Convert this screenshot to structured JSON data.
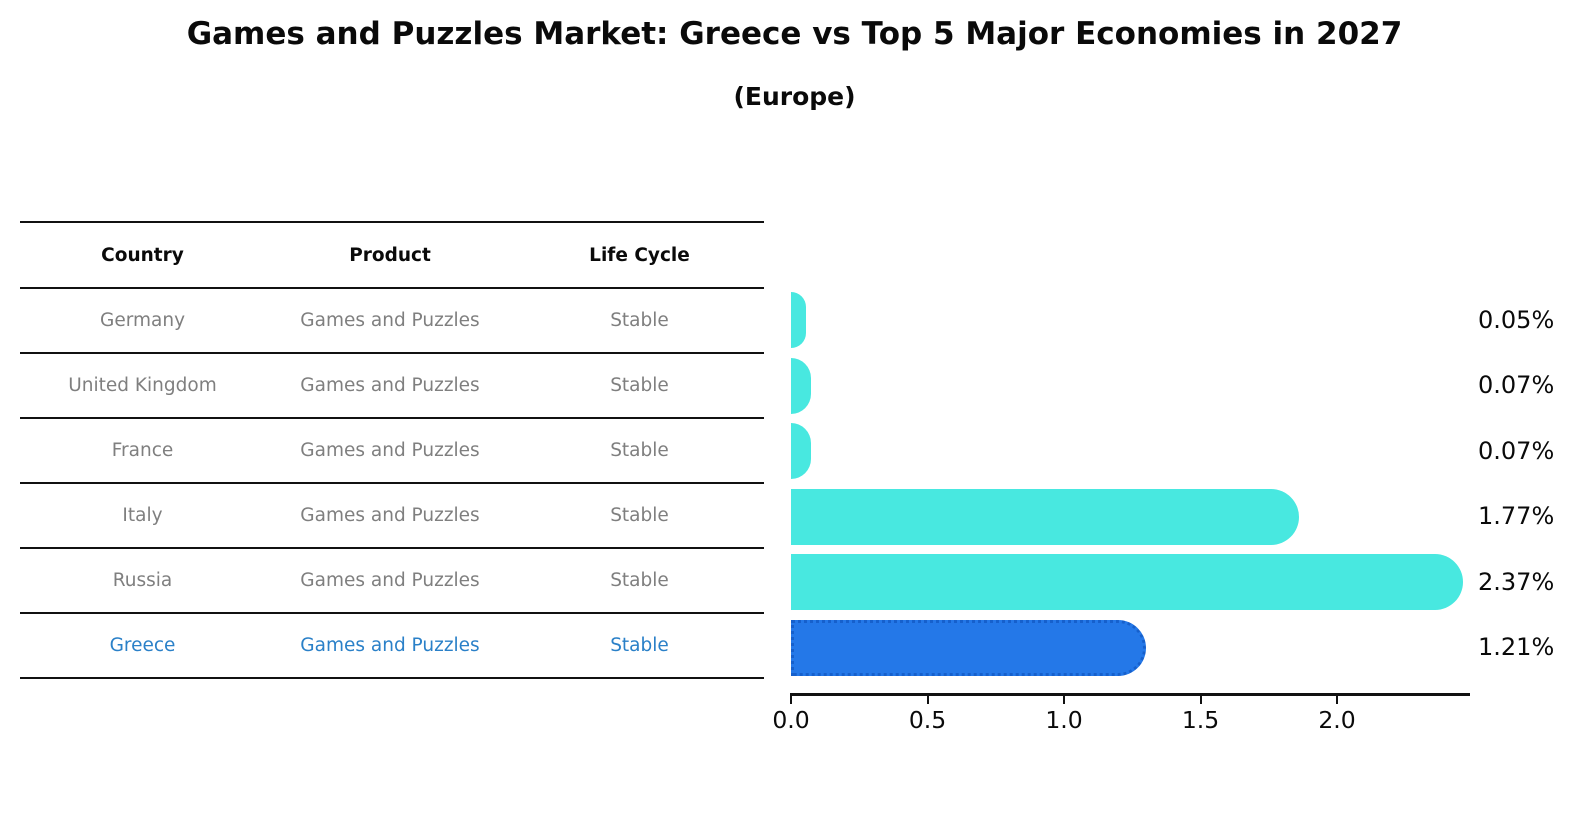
{
  "title": "Games and Puzzles Market: Greece vs Top 5 Major Economies in 2027",
  "subtitle": "(Europe)",
  "table": {
    "headers": [
      "Country",
      "Product",
      "Life Cycle"
    ],
    "rows": [
      {
        "country": "Germany",
        "product": "Games and Puzzles",
        "life_cycle": "Stable",
        "highlight": false
      },
      {
        "country": "United Kingdom",
        "product": "Games and Puzzles",
        "life_cycle": "Stable",
        "highlight": false
      },
      {
        "country": "France",
        "product": "Games and Puzzles",
        "life_cycle": "Stable",
        "highlight": false
      },
      {
        "country": "Italy",
        "product": "Games and Puzzles",
        "life_cycle": "Stable",
        "highlight": false
      },
      {
        "country": "Russia",
        "product": "Games and Puzzles",
        "life_cycle": "Stable",
        "highlight": false
      },
      {
        "country": "Greece",
        "product": "Games and Puzzles",
        "life_cycle": "Stable",
        "highlight": true
      }
    ]
  },
  "chart_data": {
    "type": "bar",
    "orientation": "horizontal",
    "title": "Games and Puzzles Market: Greece vs Top 5 Major Economies in 2027",
    "subtitle": "(Europe)",
    "categories": [
      "Germany",
      "United Kingdom",
      "France",
      "Italy",
      "Russia",
      "Greece"
    ],
    "values": [
      0.05,
      0.07,
      0.07,
      1.77,
      2.37,
      1.21
    ],
    "value_labels": [
      "0.05%",
      "0.07%",
      "0.07%",
      "1.77%",
      "2.37%",
      "1.21%"
    ],
    "x_ticks": [
      "0.0",
      "0.5",
      "1.0",
      "1.5",
      "2.0"
    ],
    "xlim": [
      0,
      2.49
    ],
    "grid": false,
    "legend": "none",
    "bar_color": "#48E8E0",
    "highlight_index": 5,
    "highlight_bar_color": "#2478E8",
    "highlight_border_color": "#1660CC"
  },
  "colors": {
    "line": "#111111",
    "text_primary": "#0a0a0a",
    "text_muted": "#7f7f7f",
    "text_highlight": "#2a80c8"
  }
}
